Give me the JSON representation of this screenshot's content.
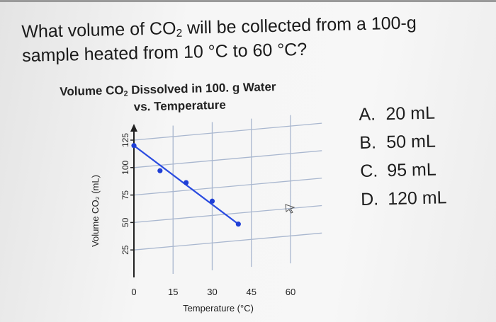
{
  "question": {
    "line1_prefix": "What volume of CO",
    "line1_sub": "2",
    "line1_suffix": " will be collected from a 100-g",
    "line2": "sample heated from 10 °C to 60 °C?"
  },
  "chart_data": {
    "type": "scatter",
    "title_prefix": "Volume CO",
    "title_sub": "2",
    "title_suffix": " Dissolved in 100. g Water",
    "title_line2": "vs. Temperature",
    "xlabel": "Temperature (°C)",
    "ylabel": "Volume CO₂ (mL)",
    "x_ticks": [
      "0",
      "15",
      "30",
      "45",
      "60"
    ],
    "y_ticks": [
      "25",
      "50",
      "75",
      "100",
      "125"
    ],
    "xlim": [
      0,
      60
    ],
    "ylim": [
      0,
      125
    ],
    "grid": true,
    "series": [
      {
        "x": [
          0,
          10,
          20,
          30,
          40
        ],
        "y": [
          120,
          95,
          82,
          63,
          40
        ]
      }
    ],
    "trend_line": {
      "x": [
        0,
        40
      ],
      "y": [
        120,
        40
      ]
    },
    "colors": {
      "points": "#1f3fd6",
      "line": "#2a4be0",
      "grid": "#a9b7cf",
      "axis": "#222222"
    }
  },
  "choices": [
    {
      "letter": "A.",
      "text": "20 mL"
    },
    {
      "letter": "B.",
      "text": "50 mL"
    },
    {
      "letter": "C.",
      "text": "95 mL"
    },
    {
      "letter": "D.",
      "text": "120 mL"
    }
  ]
}
